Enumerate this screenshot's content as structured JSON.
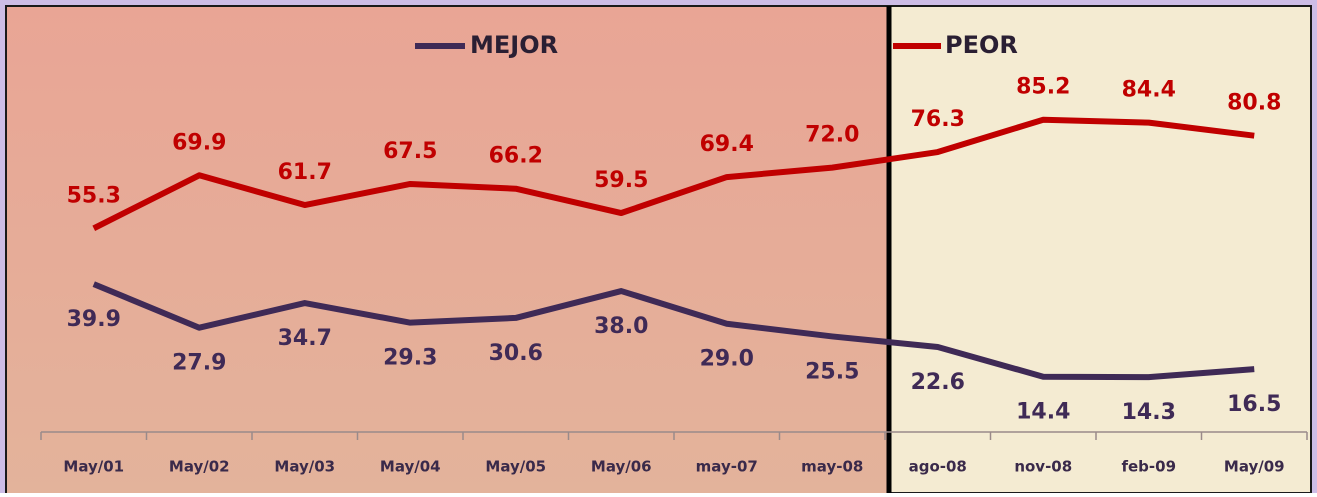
{
  "chart_data": {
    "type": "line",
    "categories": [
      "May/01",
      "May/02",
      "May/03",
      "May/04",
      "May/05",
      "May/06",
      "may-07",
      "may-08",
      "ago-08",
      "nov-08",
      "feb-09",
      "May/09"
    ],
    "series": [
      {
        "name": "MEJOR",
        "color": "#3f2a56",
        "values": [
          39.9,
          27.9,
          34.7,
          29.3,
          30.6,
          38.0,
          29.0,
          25.5,
          22.6,
          14.4,
          14.3,
          16.5
        ],
        "value_labels": [
          "39.9",
          "27.9",
          "34.7",
          "29.3",
          "30.6",
          "38.0",
          "29.0",
          "25.5",
          "22.6",
          "14.4",
          "14.3",
          "16.5"
        ]
      },
      {
        "name": "PEOR",
        "color": "#c00000",
        "values": [
          55.3,
          69.9,
          61.7,
          67.5,
          66.2,
          59.5,
          69.4,
          72.0,
          76.3,
          85.2,
          84.4,
          80.8
        ],
        "value_labels": [
          "55.3",
          "69.9",
          "61.7",
          "67.5",
          "66.2",
          "59.5",
          "69.4",
          "72.0",
          "76.3",
          "85.2",
          "84.4",
          "80.8"
        ]
      }
    ],
    "ylim": [
      0,
      100
    ]
  }
}
